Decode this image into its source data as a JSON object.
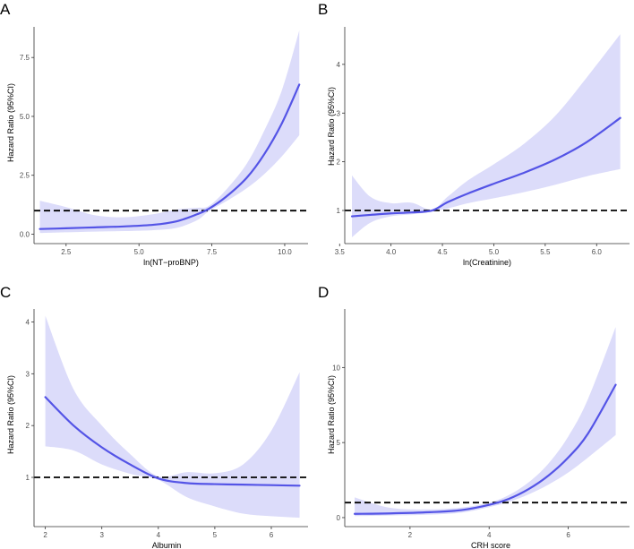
{
  "chart_data": [
    {
      "panel": "A",
      "type": "line",
      "xlabel": "ln(NT−proBNP)",
      "ylabel": "Hazard Ratio (95%CI)",
      "xlim": [
        1.4,
        10.8
      ],
      "ylim": [
        -0.4,
        8.8
      ],
      "xticks": [
        2.5,
        5.0,
        7.5,
        10.0
      ],
      "xtick_labels": [
        "2.5",
        "5.0",
        "7.5",
        "10.0"
      ],
      "yticks": [
        0.0,
        2.5,
        5.0,
        7.5
      ],
      "ytick_labels": [
        "0.0",
        "2.5",
        "5.0",
        "7.5"
      ],
      "reference_line": 1,
      "x": [
        1.6,
        2.5,
        3.5,
        4.5,
        5.5,
        6.3,
        7.0,
        7.4,
        8.0,
        8.7,
        9.3,
        9.9,
        10.5
      ],
      "hr": [
        0.22,
        0.25,
        0.29,
        0.33,
        0.4,
        0.55,
        0.85,
        1.08,
        1.6,
        2.4,
        3.4,
        4.7,
        6.35
      ],
      "lower": [
        0.05,
        0.08,
        0.11,
        0.13,
        0.17,
        0.27,
        0.6,
        0.98,
        1.4,
        1.95,
        2.55,
        3.3,
        4.2
      ],
      "upper": [
        1.42,
        1.15,
        0.8,
        0.72,
        0.85,
        1.05,
        1.12,
        1.2,
        1.9,
        3.0,
        4.4,
        6.1,
        8.65
      ]
    },
    {
      "panel": "B",
      "type": "line",
      "xlabel": "ln(Creatinine)",
      "ylabel": "Hazard Ratio (95%CI)",
      "xlim": [
        3.55,
        6.32
      ],
      "ylim": [
        0.32,
        4.77
      ],
      "xticks": [
        3.5,
        4.0,
        4.5,
        5.0,
        5.5,
        6.0
      ],
      "xtick_labels": [
        "3.5",
        "4.0",
        "4.5",
        "5.0",
        "5.5",
        "6.0"
      ],
      "yticks": [
        1,
        2,
        3,
        4
      ],
      "ytick_labels": [
        "1",
        "2",
        "3",
        "4"
      ],
      "reference_line": 1,
      "x": [
        3.62,
        3.8,
        4.0,
        4.2,
        4.4,
        4.55,
        4.75,
        5.0,
        5.3,
        5.6,
        5.9,
        6.23
      ],
      "hr": [
        0.88,
        0.91,
        0.94,
        0.96,
        1.0,
        1.17,
        1.35,
        1.55,
        1.78,
        2.05,
        2.4,
        2.9
      ],
      "lower": [
        0.45,
        0.75,
        0.88,
        0.92,
        0.98,
        1.04,
        1.15,
        1.25,
        1.38,
        1.53,
        1.7,
        1.85
      ],
      "upper": [
        1.72,
        1.28,
        1.15,
        1.16,
        1.02,
        1.28,
        1.62,
        1.95,
        2.38,
        2.95,
        3.72,
        4.62
      ]
    },
    {
      "panel": "C",
      "type": "line",
      "xlabel": "Albumin",
      "ylabel": "Hazard Ratio (95%CI)",
      "xlim": [
        1.8,
        6.65
      ],
      "ylim": [
        0.05,
        4.25
      ],
      "xticks": [
        2,
        3,
        4,
        5,
        6
      ],
      "xtick_labels": [
        "2",
        "3",
        "4",
        "5",
        "6"
      ],
      "yticks": [
        1,
        2,
        3,
        4
      ],
      "ytick_labels": [
        "1",
        "2",
        "3",
        "4"
      ],
      "reference_line": 1,
      "x": [
        2.0,
        2.5,
        3.0,
        3.5,
        4.0,
        4.5,
        5.0,
        5.5,
        6.0,
        6.5
      ],
      "hr": [
        2.55,
        2.0,
        1.58,
        1.25,
        0.98,
        0.89,
        0.87,
        0.86,
        0.85,
        0.84
      ],
      "lower": [
        1.6,
        1.52,
        1.25,
        1.07,
        0.95,
        0.62,
        0.44,
        0.3,
        0.25,
        0.22
      ],
      "upper": [
        4.12,
        2.7,
        2.0,
        1.45,
        1.02,
        1.1,
        1.08,
        1.25,
        1.9,
        3.03
      ]
    },
    {
      "panel": "D",
      "type": "line",
      "xlabel": "CRH score",
      "ylabel": "Hazard Ratio (95%CI)",
      "xlim": [
        0.35,
        7.55
      ],
      "ylim": [
        -0.6,
        13.9
      ],
      "xticks": [
        2,
        4,
        6
      ],
      "xtick_labels": [
        "2",
        "4",
        "6"
      ],
      "yticks": [
        0,
        5,
        10
      ],
      "ytick_labels": [
        "0",
        "5",
        "10"
      ],
      "reference_line": 1,
      "x": [
        0.6,
        1.5,
        2.5,
        3.3,
        4.0,
        4.5,
        5.0,
        5.5,
        6.0,
        6.5,
        7.2
      ],
      "hr": [
        0.25,
        0.28,
        0.36,
        0.5,
        0.85,
        1.25,
        1.9,
        2.8,
        4.0,
        5.6,
        8.85
      ],
      "lower": [
        0.1,
        0.14,
        0.2,
        0.33,
        0.7,
        1.05,
        1.55,
        2.2,
        3.0,
        4.0,
        5.5
      ],
      "upper": [
        1.35,
        0.65,
        0.55,
        0.67,
        1.0,
        1.5,
        2.35,
        3.6,
        5.4,
        7.9,
        12.7
      ]
    }
  ],
  "colors": {
    "line": "#5454e6",
    "band": "#dcdcfa",
    "reference": "#000000",
    "axis": "#333333"
  }
}
